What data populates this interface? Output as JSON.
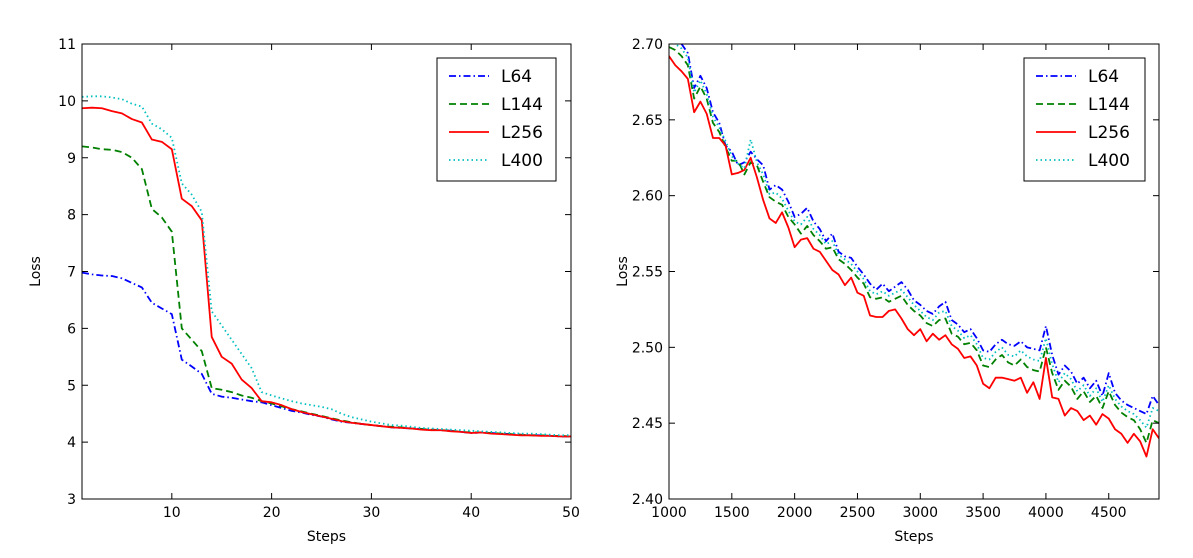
{
  "chart_data": [
    {
      "type": "line",
      "title": "",
      "xlabel": "Steps",
      "ylabel": "Loss",
      "xlim": [
        1,
        50
      ],
      "ylim": [
        3,
        11
      ],
      "xticks": [
        10,
        20,
        30,
        40,
        50
      ],
      "yticks": [
        3,
        4,
        5,
        6,
        7,
        8,
        9,
        10,
        11
      ],
      "legend": "top-right",
      "x": [
        1,
        2,
        3,
        4,
        5,
        6,
        7,
        8,
        9,
        10,
        11,
        12,
        13,
        14,
        15,
        16,
        17,
        18,
        19,
        20,
        21,
        22,
        23,
        24,
        25,
        26,
        27,
        28,
        29,
        30,
        31,
        32,
        33,
        34,
        35,
        36,
        37,
        38,
        39,
        40,
        41,
        42,
        43,
        44,
        45,
        46,
        47,
        48,
        49,
        50
      ],
      "series": [
        {
          "name": "L64",
          "color": "#0000ff",
          "dash": "dashdot",
          "values": [
            6.98,
            6.95,
            6.93,
            6.92,
            6.88,
            6.8,
            6.72,
            6.45,
            6.35,
            6.25,
            5.45,
            5.33,
            5.2,
            4.85,
            4.8,
            4.78,
            4.75,
            4.72,
            4.7,
            4.65,
            4.6,
            4.55,
            4.52,
            4.48,
            4.45,
            4.4,
            4.36,
            4.34,
            4.32,
            4.3,
            4.28,
            4.26,
            4.25,
            4.24,
            4.23,
            4.22,
            4.21,
            4.2,
            4.18,
            4.16,
            4.17,
            4.16,
            4.15,
            4.14,
            4.13,
            4.12,
            4.12,
            4.11,
            4.1,
            4.1
          ]
        },
        {
          "name": "L144",
          "color": "#008000",
          "dash": "dashed",
          "values": [
            9.2,
            9.18,
            9.15,
            9.14,
            9.1,
            9.0,
            8.8,
            8.1,
            7.95,
            7.7,
            6.0,
            5.8,
            5.6,
            4.95,
            4.92,
            4.88,
            4.82,
            4.78,
            4.72,
            4.68,
            4.63,
            4.58,
            4.54,
            4.5,
            4.46,
            4.42,
            4.38,
            4.35,
            4.32,
            4.3,
            4.28,
            4.27,
            4.26,
            4.24,
            4.23,
            4.22,
            4.21,
            4.2,
            4.18,
            4.17,
            4.17,
            4.16,
            4.15,
            4.14,
            4.13,
            4.12,
            4.12,
            4.11,
            4.11,
            4.1
          ]
        },
        {
          "name": "L256",
          "color": "#ff0000",
          "dash": "solid",
          "values": [
            9.87,
            9.88,
            9.87,
            9.82,
            9.78,
            9.68,
            9.62,
            9.32,
            9.28,
            9.15,
            8.28,
            8.15,
            7.9,
            5.85,
            5.5,
            5.38,
            5.1,
            4.95,
            4.72,
            4.7,
            4.65,
            4.58,
            4.53,
            4.49,
            4.45,
            4.41,
            4.37,
            4.34,
            4.32,
            4.3,
            4.28,
            4.26,
            4.25,
            4.24,
            4.22,
            4.21,
            4.21,
            4.19,
            4.18,
            4.16,
            4.17,
            4.15,
            4.14,
            4.13,
            4.12,
            4.12,
            4.11,
            4.11,
            4.1,
            4.1
          ]
        },
        {
          "name": "L400",
          "color": "#00bfbf",
          "dash": "dotted",
          "values": [
            10.07,
            10.08,
            10.08,
            10.06,
            10.03,
            9.95,
            9.9,
            9.6,
            9.5,
            9.35,
            8.55,
            8.35,
            8.05,
            6.3,
            6.05,
            5.8,
            5.55,
            5.3,
            4.88,
            4.82,
            4.77,
            4.72,
            4.68,
            4.65,
            4.62,
            4.58,
            4.5,
            4.44,
            4.4,
            4.36,
            4.33,
            4.3,
            4.29,
            4.27,
            4.25,
            4.24,
            4.23,
            4.22,
            4.21,
            4.2,
            4.19,
            4.18,
            4.17,
            4.16,
            4.15,
            4.15,
            4.14,
            4.13,
            4.12,
            4.12
          ]
        }
      ]
    },
    {
      "type": "line",
      "title": "",
      "xlabel": "Steps",
      "ylabel": "Loss",
      "xlim": [
        1000,
        4900
      ],
      "ylim": [
        2.4,
        2.7
      ],
      "xticks": [
        1000,
        1500,
        2000,
        2500,
        3000,
        3500,
        4000,
        4500
      ],
      "yticks": [
        2.4,
        2.45,
        2.5,
        2.55,
        2.6,
        2.65,
        2.7
      ],
      "ytick_labels": [
        "2.40",
        "2.45",
        "2.50",
        "2.55",
        "2.60",
        "2.65",
        "2.70"
      ],
      "legend": "top-right",
      "x": [
        1000,
        1050,
        1100,
        1150,
        1200,
        1250,
        1300,
        1350,
        1400,
        1450,
        1500,
        1550,
        1600,
        1650,
        1700,
        1750,
        1800,
        1850,
        1900,
        1950,
        2000,
        2050,
        2100,
        2150,
        2200,
        2250,
        2300,
        2350,
        2400,
        2450,
        2500,
        2550,
        2600,
        2650,
        2700,
        2750,
        2800,
        2850,
        2900,
        2950,
        3000,
        3050,
        3100,
        3150,
        3200,
        3250,
        3300,
        3350,
        3400,
        3450,
        3500,
        3550,
        3600,
        3650,
        3700,
        3750,
        3800,
        3850,
        3900,
        3950,
        4000,
        4050,
        4100,
        4150,
        4200,
        4250,
        4300,
        4350,
        4400,
        4450,
        4500,
        4550,
        4600,
        4650,
        4700,
        4750,
        4800,
        4850,
        4900
      ],
      "series": [
        {
          "name": "L64",
          "color": "#0000ff",
          "dash": "dashdot",
          "values": [
            2.705,
            2.703,
            2.7,
            2.694,
            2.671,
            2.679,
            2.671,
            2.655,
            2.648,
            2.633,
            2.629,
            2.62,
            2.622,
            2.629,
            2.624,
            2.62,
            2.604,
            2.607,
            2.604,
            2.596,
            2.586,
            2.588,
            2.592,
            2.583,
            2.578,
            2.57,
            2.575,
            2.563,
            2.56,
            2.559,
            2.553,
            2.548,
            2.542,
            2.538,
            2.542,
            2.537,
            2.54,
            2.543,
            2.538,
            2.531,
            2.528,
            2.524,
            2.522,
            2.527,
            2.53,
            2.518,
            2.515,
            2.51,
            2.512,
            2.506,
            2.498,
            2.497,
            2.502,
            2.505,
            2.502,
            2.501,
            2.504,
            2.5,
            2.499,
            2.498,
            2.514,
            2.495,
            2.482,
            2.488,
            2.484,
            2.476,
            2.48,
            2.473,
            2.478,
            2.468,
            2.483,
            2.47,
            2.465,
            2.462,
            2.46,
            2.458,
            2.456,
            2.468,
            2.462
          ]
        },
        {
          "name": "L144",
          "color": "#008000",
          "dash": "dashed",
          "values": [
            2.698,
            2.696,
            2.692,
            2.686,
            2.664,
            2.672,
            2.664,
            2.648,
            2.642,
            2.632,
            2.623,
            2.623,
            2.614,
            2.622,
            2.62,
            2.609,
            2.599,
            2.596,
            2.594,
            2.586,
            2.581,
            2.575,
            2.58,
            2.574,
            2.57,
            2.565,
            2.566,
            2.558,
            2.555,
            2.551,
            2.546,
            2.542,
            2.533,
            2.532,
            2.533,
            2.53,
            2.532,
            2.534,
            2.528,
            2.524,
            2.521,
            2.516,
            2.514,
            2.518,
            2.519,
            2.509,
            2.507,
            2.502,
            2.503,
            2.498,
            2.488,
            2.487,
            2.492,
            2.495,
            2.49,
            2.488,
            2.492,
            2.487,
            2.485,
            2.484,
            2.5,
            2.483,
            2.472,
            2.478,
            2.474,
            2.466,
            2.471,
            2.464,
            2.468,
            2.46,
            2.471,
            2.462,
            2.457,
            2.454,
            2.452,
            2.446,
            2.437,
            2.452,
            2.45
          ]
        },
        {
          "name": "L256",
          "color": "#ff0000",
          "dash": "solid",
          "values": [
            2.692,
            2.686,
            2.682,
            2.677,
            2.655,
            2.662,
            2.654,
            2.638,
            2.638,
            2.633,
            2.614,
            2.615,
            2.617,
            2.625,
            2.612,
            2.597,
            2.585,
            2.582,
            2.589,
            2.579,
            2.566,
            2.571,
            2.572,
            2.565,
            2.563,
            2.557,
            2.551,
            2.548,
            2.541,
            2.546,
            2.536,
            2.534,
            2.521,
            2.52,
            2.52,
            2.524,
            2.525,
            2.519,
            2.512,
            2.508,
            2.512,
            2.504,
            2.509,
            2.505,
            2.508,
            2.502,
            2.499,
            2.493,
            2.494,
            2.488,
            2.476,
            2.473,
            2.48,
            2.48,
            2.479,
            2.478,
            2.48,
            2.47,
            2.477,
            2.466,
            2.493,
            2.467,
            2.466,
            2.455,
            2.46,
            2.458,
            2.452,
            2.455,
            2.449,
            2.456,
            2.453,
            2.446,
            2.443,
            2.437,
            2.443,
            2.438,
            2.428,
            2.446,
            2.44
          ]
        },
        {
          "name": "L400",
          "color": "#00bfbf",
          "dash": "dotted",
          "values": [
            2.702,
            2.7,
            2.697,
            2.691,
            2.668,
            2.676,
            2.667,
            2.652,
            2.645,
            2.636,
            2.626,
            2.621,
            2.618,
            2.637,
            2.622,
            2.614,
            2.601,
            2.602,
            2.598,
            2.59,
            2.583,
            2.581,
            2.586,
            2.578,
            2.574,
            2.568,
            2.57,
            2.561,
            2.558,
            2.555,
            2.55,
            2.545,
            2.537,
            2.535,
            2.537,
            2.534,
            2.536,
            2.538,
            2.533,
            2.528,
            2.524,
            2.52,
            2.518,
            2.523,
            2.524,
            2.514,
            2.511,
            2.506,
            2.508,
            2.502,
            2.493,
            2.492,
            2.497,
            2.5,
            2.495,
            2.494,
            2.498,
            2.494,
            2.492,
            2.491,
            2.506,
            2.489,
            2.477,
            2.483,
            2.479,
            2.471,
            2.475,
            2.468,
            2.473,
            2.464,
            2.475,
            2.466,
            2.461,
            2.458,
            2.456,
            2.452,
            2.447,
            2.46,
            2.458
          ]
        }
      ]
    }
  ]
}
